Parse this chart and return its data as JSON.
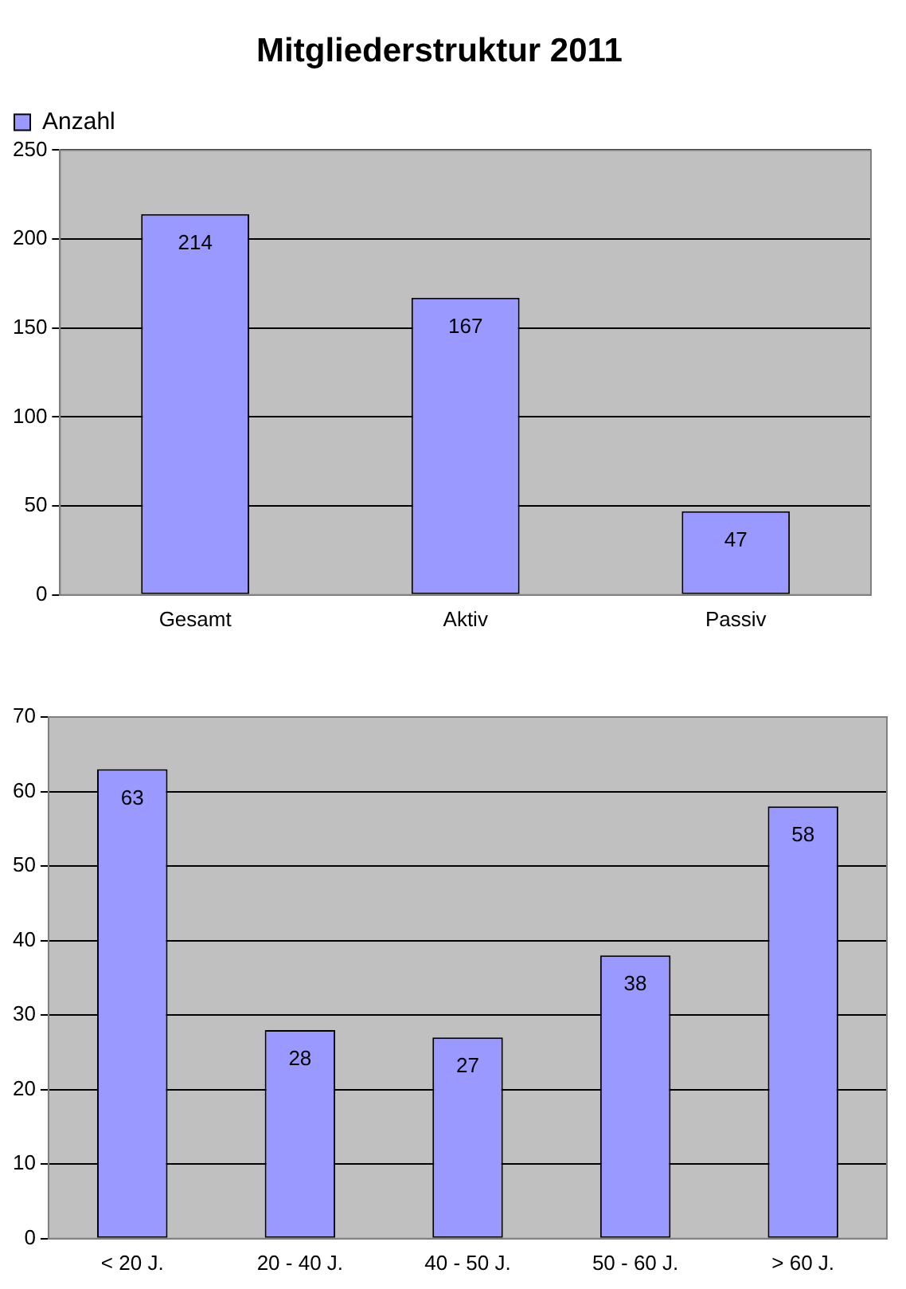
{
  "chart_data": [
    {
      "type": "bar",
      "title": "Mitgliederstruktur 2011",
      "categories": [
        "Gesamt",
        "Aktiv",
        "Passiv"
      ],
      "series": [
        {
          "name": "Anzahl",
          "color": "#9999ff",
          "values": [
            214,
            167,
            47
          ]
        }
      ],
      "ylim": [
        0,
        250
      ],
      "yticks": [
        0,
        50,
        100,
        150,
        200,
        250
      ],
      "grid": "y",
      "legend": "top left",
      "data_labels": true
    },
    {
      "type": "bar",
      "categories": [
        "< 20 J.",
        "20 - 40 J.",
        "40 - 50 J.",
        "50 - 60 J.",
        "> 60 J."
      ],
      "series": [
        {
          "color": "#9999ff",
          "values": [
            63,
            28,
            27,
            38,
            58
          ]
        }
      ],
      "ylim": [
        0,
        70
      ],
      "yticks": [
        0,
        10,
        20,
        30,
        40,
        50,
        60,
        70
      ],
      "grid": "y",
      "data_labels": true
    }
  ]
}
